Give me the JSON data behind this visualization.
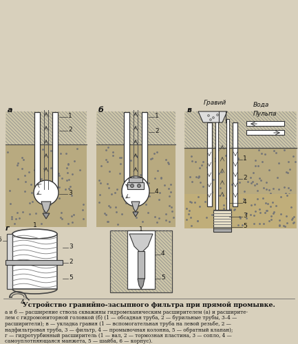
{
  "title": "Устройство гравийно-засыпного фильтра при прямой промывке.",
  "caption_line1": "а и б — расширение ствола скважины гидромеханическим расширителем (а) и расширите-",
  "caption_line2": "лем с гидромониторной головкой (б) (1 — обсадная труба, 2 — бурильные трубы, 3–4 —",
  "caption_line3": "расширители); в — укладка гравия (1 — вспомогательная труба на левой резьбе, 2 —",
  "caption_line4": "надфильтровая труба, 3 — фильтр, 4 — промывочная колонна, 5 — обратный клапан);",
  "caption_line5": "г — гидротурбинный расширитель (1 — вал, 2 — тормозная пластина, 3 — сопло, 4 —",
  "caption_line6": "самоуплотняющаяся манжета, 5 — шайба, 6 — корпус).",
  "bg_color": "#d8d0bc",
  "hatch_color": "#999999",
  "soil_color": "#b8aa80",
  "line_color": "#222222",
  "white": "#ffffff",
  "gray_light": "#cccccc",
  "gray_mid": "#aaaaaa"
}
